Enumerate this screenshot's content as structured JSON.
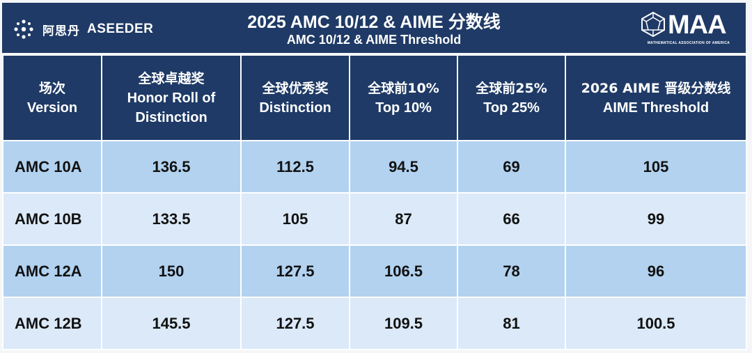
{
  "brand": {
    "cn": "阿思丹",
    "en": "ASEEDER",
    "icon": "sprout-logo-icon"
  },
  "title": "2025 AMC 10/12 & AIME 分数线",
  "subtitle": "AMC 10/12 & AIME Threshold",
  "maa_logo": {
    "word": "MAA",
    "tagline": "MATHEMATICAL ASSOCIATION OF AMERICA"
  },
  "colors": {
    "header": "#1f3a66",
    "row_dark": "#b2d2f0",
    "row_light": "#dbe9f8"
  },
  "table": {
    "headers": [
      {
        "cn": "场次",
        "en": "Version"
      },
      {
        "cn": "全球卓越奖",
        "en": "Honor Roll of Distinction"
      },
      {
        "cn": "全球优秀奖",
        "en": "Distinction"
      },
      {
        "cn": "全球前10%",
        "en": "Top 10%"
      },
      {
        "cn": "全球前25%",
        "en": "Top 25%"
      },
      {
        "cn": "2026 AIME 晋级分数线",
        "en": "AIME Threshold"
      }
    ],
    "rows": [
      [
        "AMC 10A",
        "136.5",
        "112.5",
        "94.5",
        "69",
        "105"
      ],
      [
        "AMC 10B",
        "133.5",
        "105",
        "87",
        "66",
        "99"
      ],
      [
        "AMC 12A",
        "150",
        "127.5",
        "106.5",
        "78",
        "96"
      ],
      [
        "AMC 12B",
        "145.5",
        "127.5",
        "109.5",
        "81",
        "100.5"
      ]
    ]
  }
}
